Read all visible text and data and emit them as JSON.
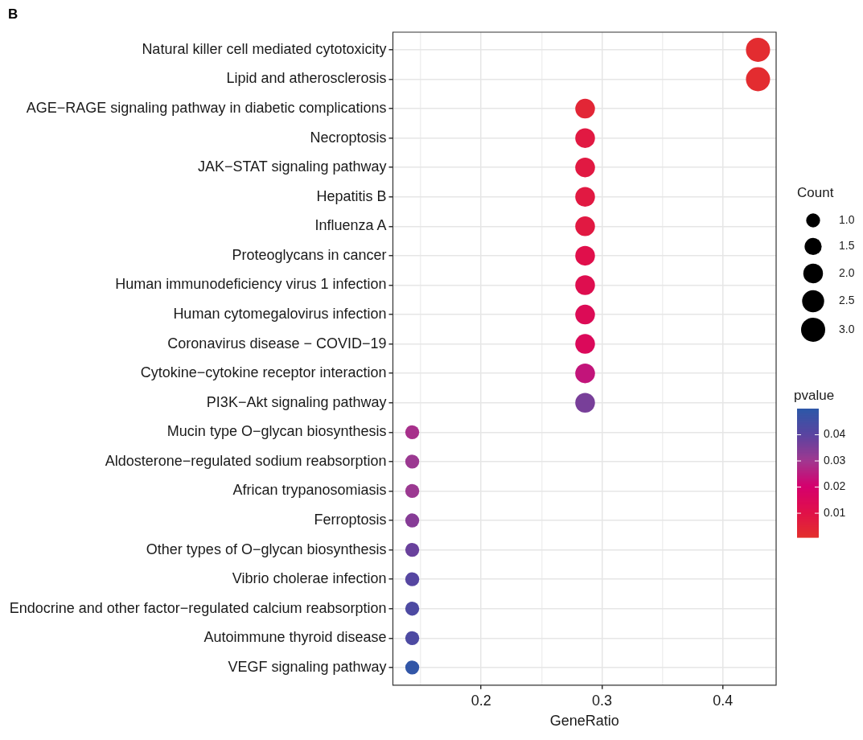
{
  "chart_data": {
    "type": "bubble",
    "orientation": "horizontal",
    "title": "B",
    "xlabel": "GeneRatio",
    "legend_title": "Count",
    "clabel": "pvalue",
    "grid": true,
    "categories": [
      "Natural killer cell mediated cytotoxicity",
      "Lipid and atherosclerosis",
      "AGE−RAGE signaling pathway in diabetic complications",
      "Necroptosis",
      "JAK−STAT signaling pathway",
      "Hepatitis B",
      "Influenza A",
      "Proteoglycans in cancer",
      "Human immunodeficiency virus 1 infection",
      "Human cytomegalovirus infection",
      "Coronavirus disease − COVID−19",
      "Cytokine−cytokine receptor interaction",
      "PI3K−Akt signaling pathway",
      "Mucin type O−glycan biosynthesis",
      "Aldosterone−regulated sodium reabsorption",
      "African trypanosomiasis",
      "Ferroptosis",
      "Other types of O−glycan biosynthesis",
      "Vibrio cholerae infection",
      "Endocrine and other factor−regulated calcium reabsorption",
      "Autoimmune thyroid disease",
      "VEGF signaling pathway"
    ],
    "values": [
      0.429,
      0.429,
      0.286,
      0.286,
      0.286,
      0.286,
      0.286,
      0.286,
      0.286,
      0.286,
      0.286,
      0.286,
      0.286,
      0.143,
      0.143,
      0.143,
      0.143,
      0.143,
      0.143,
      0.143,
      0.143,
      0.143
    ],
    "sizes": [
      3,
      3,
      2,
      2,
      2,
      2,
      2,
      2,
      2,
      2,
      2,
      2,
      2,
      1,
      1,
      1,
      1,
      1,
      1,
      1,
      1,
      1
    ],
    "cvalues": [
      0.002,
      0.002,
      0.004,
      0.008,
      0.008,
      0.008,
      0.008,
      0.011,
      0.012,
      0.014,
      0.015,
      0.024,
      0.036,
      0.029,
      0.031,
      0.031,
      0.034,
      0.038,
      0.041,
      0.043,
      0.043,
      0.049
    ],
    "size_legend": [
      {
        "value": 1,
        "label": "1.0"
      },
      {
        "value": 1.5,
        "label": "1.5"
      },
      {
        "value": 2,
        "label": "2.0"
      },
      {
        "value": 2.5,
        "label": "2.5"
      },
      {
        "value": 3,
        "label": "3.0"
      }
    ],
    "clim": [
      0.0008,
      0.05
    ],
    "cticks": [
      0.01,
      0.02,
      0.03,
      0.04
    ],
    "xlim": [
      0.127,
      0.444
    ],
    "xticks": [
      {
        "value": 0.15,
        "label": null
      },
      {
        "value": 0.2,
        "label": "0.2"
      },
      {
        "value": 0.25,
        "label": null
      },
      {
        "value": 0.3,
        "label": "0.3"
      },
      {
        "value": 0.35,
        "label": null
      },
      {
        "value": 0.4,
        "label": "0.4"
      }
    ]
  }
}
